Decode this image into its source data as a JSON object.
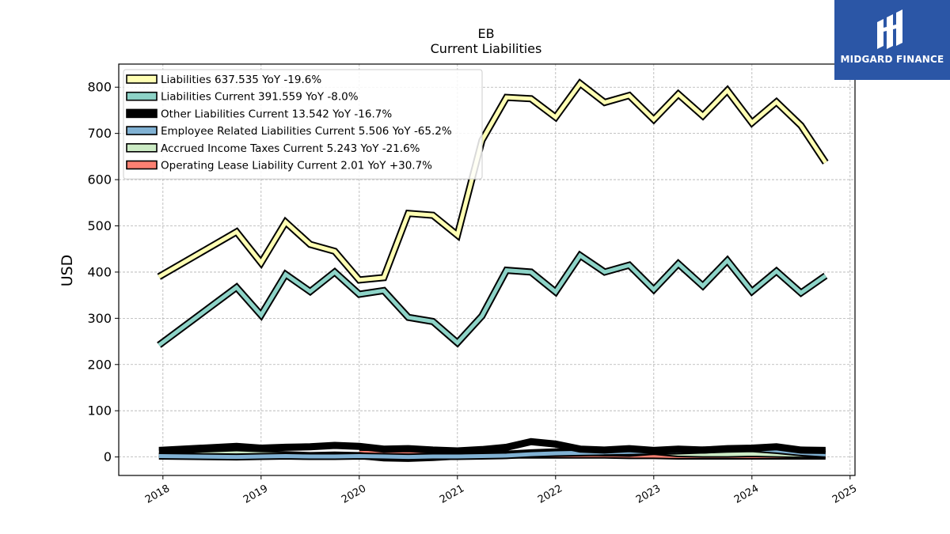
{
  "chart_data": {
    "type": "line",
    "title": "EB",
    "subtitle": "Current  Liabilities",
    "ylabel": "USD",
    "xlabel": "",
    "ylim": [
      -40,
      850
    ],
    "xlim": [
      2017.55,
      2025.05
    ],
    "yticks": [
      0,
      100,
      200,
      300,
      400,
      500,
      600,
      700,
      800
    ],
    "xticks": [
      2018,
      2019,
      2020,
      2021,
      2022,
      2023,
      2024,
      2025
    ],
    "grid": true,
    "legend_position": "top-left",
    "series": [
      {
        "name": "Liabilities",
        "legend": "Liabilities  637.535 YoY -19.6%",
        "color": "#ffffb3",
        "x": [
          2017.96,
          2018.75,
          2019.0,
          2019.25,
          2019.5,
          2019.75,
          2020.0,
          2020.25,
          2020.5,
          2020.75,
          2021.0,
          2021.25,
          2021.5,
          2021.75,
          2022.0,
          2022.25,
          2022.5,
          2022.75,
          2023.0,
          2023.25,
          2023.5,
          2023.75,
          2024.0,
          2024.25,
          2024.5,
          2024.75
        ],
        "y": [
          390,
          487,
          420,
          508,
          460,
          445,
          383,
          388,
          527,
          523,
          480,
          685,
          778,
          775,
          735,
          808,
          767,
          782,
          730,
          785,
          738,
          793,
          723,
          768,
          717,
          637
        ]
      },
      {
        "name": "Liabilities Current",
        "legend": "Liabilities Current  391.559 YoY -8.0%",
        "color": "#8dd3c7",
        "x": [
          2017.96,
          2018.75,
          2019.0,
          2019.25,
          2019.5,
          2019.75,
          2020.0,
          2020.25,
          2020.5,
          2020.75,
          2021.0,
          2021.25,
          2021.5,
          2021.75,
          2022.0,
          2022.25,
          2022.5,
          2022.75,
          2023.0,
          2023.25,
          2023.5,
          2023.75,
          2024.0,
          2024.25,
          2024.5,
          2024.75
        ],
        "y": [
          242,
          367,
          307,
          395,
          358,
          400,
          352,
          360,
          302,
          293,
          247,
          305,
          404,
          400,
          357,
          436,
          400,
          415,
          362,
          418,
          370,
          425,
          358,
          402,
          355,
          392
        ]
      },
      {
        "name": "Other Liabilities Current",
        "legend": "Other Liabilities Current  13.542 YoY -16.7%",
        "color": "#000000",
        "x": [
          2017.96,
          2018.75,
          2019.0,
          2019.25,
          2019.5,
          2019.75,
          2020.0,
          2020.25,
          2020.5,
          2020.75,
          2021.0,
          2021.25,
          2021.5,
          2021.75,
          2022.0,
          2022.25,
          2022.5,
          2022.75,
          2023.0,
          2023.25,
          2023.5,
          2023.75,
          2024.0,
          2024.25,
          2024.5,
          2024.75
        ],
        "y": [
          14,
          23,
          19,
          21,
          22,
          25,
          23,
          17,
          18,
          15,
          13,
          16,
          21,
          33,
          28,
          17,
          15,
          18,
          14,
          17,
          15,
          18,
          19,
          22,
          15,
          14
        ]
      },
      {
        "name": "Employee Related Liabilities Current",
        "legend": "Employee Related Liabilities Current  5.506 YoY -65.2%",
        "color": "#80b1d3",
        "x": [
          2017.96,
          2018.75,
          2019.0,
          2019.25,
          2019.5,
          2019.75,
          2020.0,
          2020.25,
          2020.5,
          2020.75,
          2021.0,
          2021.25,
          2021.5,
          2021.75,
          2022.0,
          2022.25,
          2022.5,
          2022.75,
          2023.0,
          2023.25,
          2023.5,
          2023.75,
          2024.0,
          2024.25,
          2024.5,
          2024.75
        ],
        "y": [
          2,
          0,
          1,
          2,
          1,
          1,
          2,
          1,
          0,
          1,
          1,
          2,
          3,
          6,
          8,
          9,
          10,
          11,
          12,
          13,
          15,
          17,
          18,
          14,
          9,
          5.5
        ]
      },
      {
        "name": "Accrued Income Taxes Current",
        "legend": "Accrued Income Taxes Current  5.243 YoY -21.6%",
        "color": "#ccebc5",
        "x": [
          2017.96,
          2018.75,
          2019.0,
          2019.25,
          2019.5,
          2019.75,
          2020.0,
          2020.25,
          2020.5,
          2020.75,
          2021.0,
          2021.25,
          2021.5,
          2021.75,
          2022.0,
          2022.25,
          2022.5,
          2022.75,
          2023.0,
          2023.25,
          2023.5,
          2023.75,
          2024.0,
          2024.25,
          2024.5,
          2024.75
        ],
        "y": [
          2,
          8,
          6,
          5,
          3,
          4,
          3,
          -2,
          -3,
          -1,
          2,
          4,
          6,
          9,
          11,
          10,
          9,
          8,
          12,
          7,
          6,
          6,
          7,
          6,
          5,
          5.2
        ]
      },
      {
        "name": "Operating Lease Liability Current",
        "legend": "Operating Lease Liability Current  2.01 YoY +30.7%",
        "color": "#fb8072",
        "x": [
          2020.0,
          2020.25,
          2020.5,
          2020.75,
          2021.0,
          2021.25,
          2021.5,
          2021.75,
          2022.0,
          2022.25,
          2022.5,
          2022.75,
          2023.0,
          2023.25,
          2023.5,
          2023.75,
          2024.0,
          2024.25,
          2024.5,
          2024.75
        ],
        "y": [
          9,
          8,
          7,
          6,
          5,
          4,
          4,
          4,
          4,
          4,
          4,
          3,
          3,
          2,
          2,
          2,
          2,
          2,
          2,
          2
        ]
      }
    ]
  },
  "logo": {
    "text": "MIDGARD FINANCE",
    "icon": "midgard-logo-icon"
  }
}
